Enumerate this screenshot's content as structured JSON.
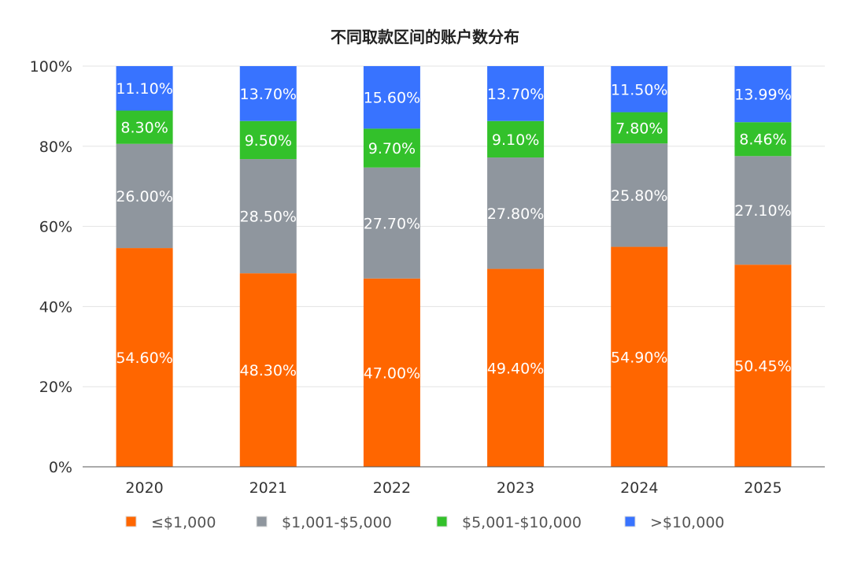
{
  "chart_data": {
    "type": "bar",
    "stacked": true,
    "title": "不同取款区间的账户数分布",
    "xlabel": "",
    "ylabel": "",
    "categories": [
      "2020",
      "2021",
      "2022",
      "2023",
      "2024",
      "2025"
    ],
    "ylim": [
      0,
      100
    ],
    "yticks": [
      "0%",
      "20%",
      "40%",
      "60%",
      "80%",
      "100%"
    ],
    "grid": true,
    "legend_position": "bottom",
    "series": [
      {
        "name": "≤$1,000",
        "color": "#FF6600",
        "values": [
          54.6,
          48.3,
          47.0,
          49.4,
          54.9,
          50.45
        ],
        "labels": [
          "54.60%",
          "48.30%",
          "47.00%",
          "49.40%",
          "54.90%",
          "50.45%"
        ]
      },
      {
        "name": "$1,001-$5,000",
        "color": "#8F969E",
        "values": [
          26.0,
          28.5,
          27.7,
          27.8,
          25.8,
          27.1
        ],
        "labels": [
          "26.00%",
          "28.50%",
          "27.70%",
          "27.80%",
          "25.80%",
          "27.10%"
        ]
      },
      {
        "name": "$5,001-$10,000",
        "color": "#33C12B",
        "values": [
          8.3,
          9.5,
          9.7,
          9.1,
          7.8,
          8.46
        ],
        "labels": [
          "8.30%",
          "9.50%",
          "9.70%",
          "9.10%",
          "7.80%",
          "8.46%"
        ]
      },
      {
        "name": ">$10,000",
        "color": "#3873FF",
        "values": [
          11.1,
          13.7,
          15.6,
          13.7,
          11.5,
          13.99
        ],
        "labels": [
          "11.10%",
          "13.70%",
          "15.60%",
          "13.70%",
          "11.50%",
          "13.99%"
        ]
      }
    ]
  }
}
